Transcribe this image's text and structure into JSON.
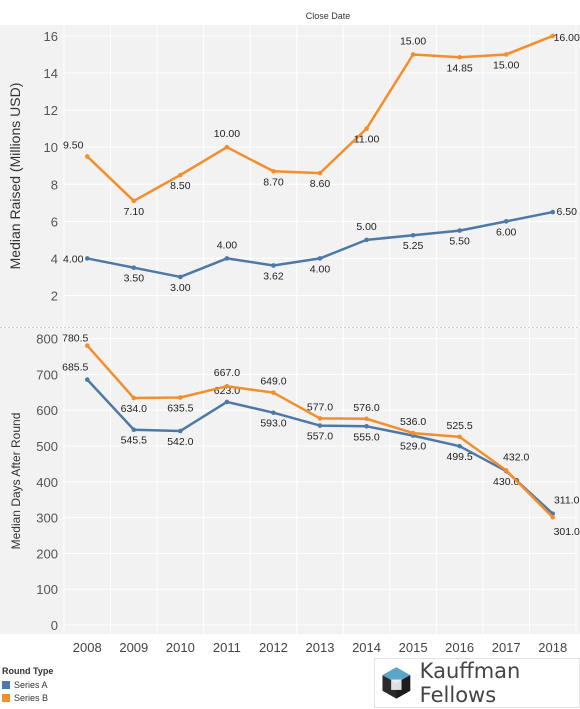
{
  "chart_data": {
    "type": "line",
    "title": "Close Date",
    "x": [
      "2008",
      "2009",
      "2010",
      "2011",
      "2012",
      "2013",
      "2014",
      "2015",
      "2016",
      "2017",
      "2018"
    ],
    "colors": {
      "Series A": "#4e79a7",
      "Series B": "#f28e2b"
    },
    "panels": [
      {
        "ylabel": "Median Raised (Millions USD)",
        "ylim": [
          0,
          17
        ],
        "yticks": [
          2,
          4,
          6,
          8,
          10,
          12,
          14,
          16
        ],
        "series": [
          {
            "name": "Series A",
            "values": [
              4.0,
              3.5,
              3.0,
              4.0,
              3.62,
              4.0,
              5.0,
              5.25,
              5.5,
              6.0,
              6.5
            ],
            "labels": [
              "4.00",
              "3.50",
              "3.00",
              "4.00",
              "3.62",
              "4.00",
              "5.00",
              "5.25",
              "5.50",
              "6.00",
              "6.50"
            ]
          },
          {
            "name": "Series B",
            "values": [
              9.5,
              7.1,
              8.5,
              10.0,
              8.7,
              8.6,
              11.0,
              15.0,
              14.85,
              15.0,
              16.0
            ],
            "labels": [
              "9.50",
              "7.10",
              "8.50",
              "10.00",
              "8.70",
              "8.60",
              "11.00",
              "15.00",
              "14.85",
              "15.00",
              "16.00"
            ]
          }
        ]
      },
      {
        "ylabel": "Median Days After Round",
        "ylim": [
          0,
          800
        ],
        "yticks": [
          0,
          100,
          200,
          300,
          400,
          500,
          600,
          700,
          800
        ],
        "series": [
          {
            "name": "Series A",
            "values": [
              685.5,
              545.5,
              542.0,
              623.0,
              593.0,
              557.0,
              555.0,
              529.0,
              499.5,
              430.0,
              311.0
            ],
            "labels": [
              "685.5",
              "545.5",
              "542.0",
              "623.0",
              "593.0",
              "557.0",
              "555.0",
              "529.0",
              "499.5",
              "430.0",
              "311.0"
            ]
          },
          {
            "name": "Series B",
            "values": [
              780.5,
              634.0,
              635.5,
              667.0,
              649.0,
              577.0,
              576.0,
              536.0,
              525.5,
              432.0,
              301.0
            ],
            "labels": [
              "780.5",
              "634.0",
              "635.5",
              "667.0",
              "649.0",
              "577.0",
              "576.0",
              "536.0",
              "525.5",
              "432.0",
              "301.0"
            ]
          }
        ]
      }
    ]
  },
  "legend": {
    "title": "Round Type",
    "items": [
      {
        "name": "Series A",
        "color": "#4e79a7"
      },
      {
        "name": "Series B",
        "color": "#f28e2b"
      }
    ]
  },
  "logo": {
    "text": "Kauffman Fellows"
  }
}
